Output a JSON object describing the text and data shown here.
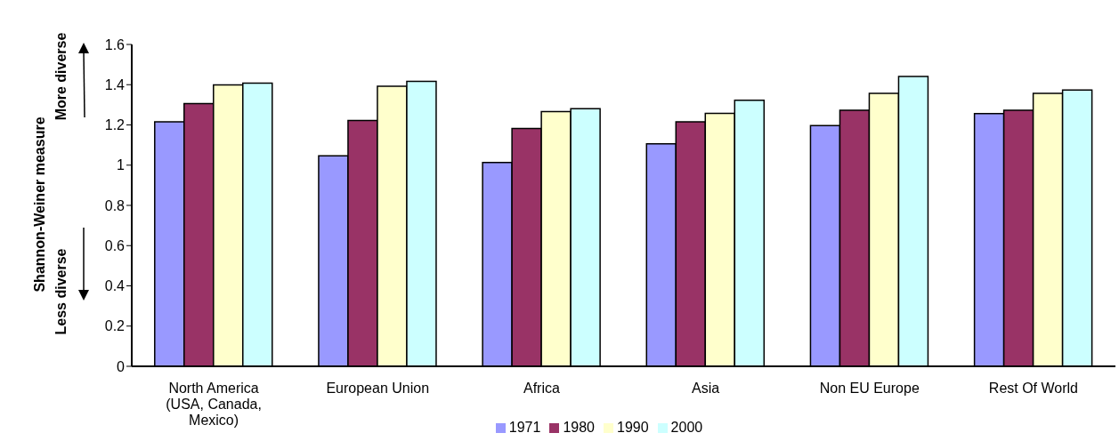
{
  "chart_data": {
    "type": "bar",
    "ylabel": "Shannon-Weiner measure",
    "annotations": [
      "More diverse",
      "Less diverse"
    ],
    "categories": [
      "North America (USA, Canada, Mexico)",
      "European Union",
      "Africa",
      "Asia",
      "Non EU Europe",
      "Rest Of World"
    ],
    "series": [
      {
        "name": "1971",
        "color": "#9999ff",
        "values": [
          1.215,
          1.046,
          1.013,
          1.106,
          1.197,
          1.256
        ]
      },
      {
        "name": "1980",
        "color": "#993366",
        "values": [
          1.306,
          1.222,
          1.182,
          1.215,
          1.273,
          1.273
        ]
      },
      {
        "name": "1990",
        "color": "#ffffcc",
        "values": [
          1.399,
          1.392,
          1.266,
          1.257,
          1.357,
          1.357
        ]
      },
      {
        "name": "2000",
        "color": "#ccffff",
        "values": [
          1.408,
          1.417,
          1.281,
          1.323,
          1.441,
          1.373
        ]
      }
    ],
    "ylim": [
      0,
      1.6
    ],
    "yticks": [
      0,
      0.2,
      0.4,
      0.6,
      0.8,
      1,
      1.2,
      1.4,
      1.6
    ],
    "grid": false,
    "legend": "bottom"
  }
}
